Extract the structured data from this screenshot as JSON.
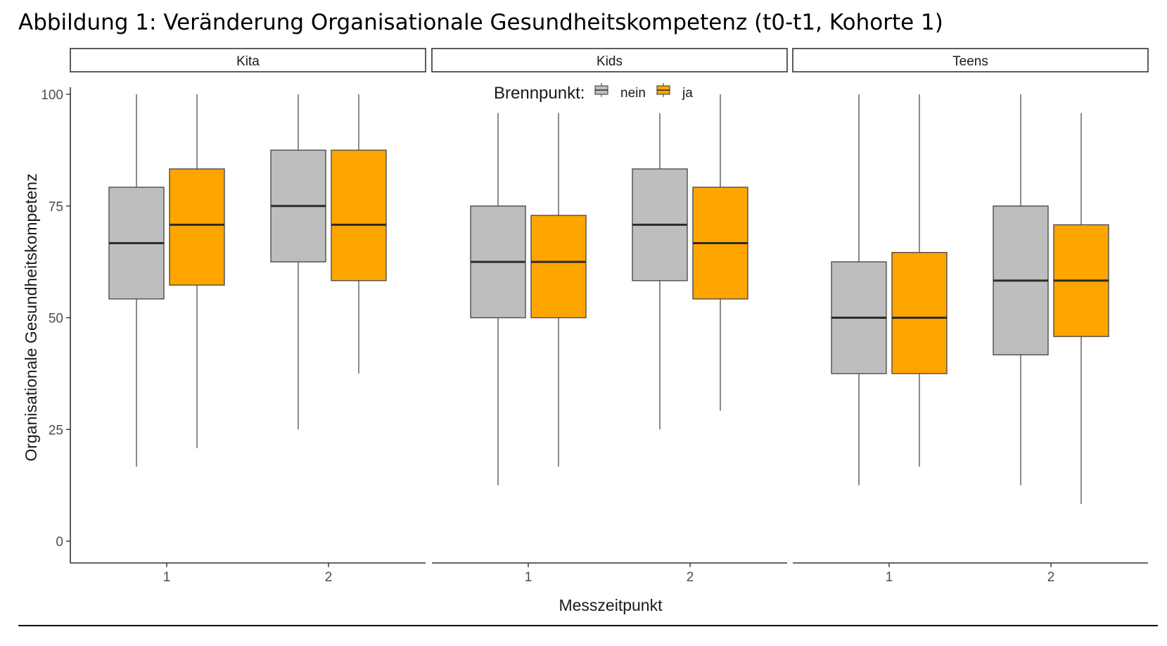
{
  "figure": {
    "title": "Abbildung 1: Veränderung Organisationale Gesundheitskompetenz (t0-t1, Kohorte 1)"
  },
  "chart_data": {
    "type": "boxplot",
    "facets": [
      "Kita",
      "Kids",
      "Teens"
    ],
    "xlabel": "Messzeitpunkt",
    "ylabel": "Organisationale Gesundheitskompetenz",
    "x_categories": [
      "1",
      "2"
    ],
    "ylim": [
      0,
      100
    ],
    "yticks": [
      0,
      25,
      50,
      75,
      100
    ],
    "grid": false,
    "legend": {
      "title": "Brennpunkt:",
      "position": "top",
      "entries": [
        {
          "key": "nein",
          "label": "nein",
          "color": "#bebebe"
        },
        {
          "key": "ja",
          "label": "ja",
          "color": "#ffa500"
        }
      ]
    },
    "boxes": [
      {
        "facet": "Kita",
        "x": "1",
        "group": "nein",
        "min": 16.7,
        "q1": 54.2,
        "median": 66.7,
        "q3": 79.2,
        "max": 100
      },
      {
        "facet": "Kita",
        "x": "1",
        "group": "ja",
        "min": 20.8,
        "q1": 57.3,
        "median": 70.8,
        "q3": 83.3,
        "max": 100
      },
      {
        "facet": "Kita",
        "x": "2",
        "group": "nein",
        "min": 25.0,
        "q1": 62.5,
        "median": 75.0,
        "q3": 87.5,
        "max": 100
      },
      {
        "facet": "Kita",
        "x": "2",
        "group": "ja",
        "min": 37.5,
        "q1": 58.3,
        "median": 70.8,
        "q3": 87.5,
        "max": 100
      },
      {
        "facet": "Kids",
        "x": "1",
        "group": "nein",
        "min": 12.5,
        "q1": 50.0,
        "median": 62.5,
        "q3": 75.0,
        "max": 95.8
      },
      {
        "facet": "Kids",
        "x": "1",
        "group": "ja",
        "min": 16.7,
        "q1": 50.0,
        "median": 62.5,
        "q3": 72.9,
        "max": 95.8
      },
      {
        "facet": "Kids",
        "x": "2",
        "group": "nein",
        "min": 25.0,
        "q1": 58.3,
        "median": 70.8,
        "q3": 83.3,
        "max": 95.8
      },
      {
        "facet": "Kids",
        "x": "2",
        "group": "ja",
        "min": 29.2,
        "q1": 54.2,
        "median": 66.7,
        "q3": 79.2,
        "max": 100
      },
      {
        "facet": "Teens",
        "x": "1",
        "group": "nein",
        "min": 12.5,
        "q1": 37.5,
        "median": 50.0,
        "q3": 62.5,
        "max": 100
      },
      {
        "facet": "Teens",
        "x": "1",
        "group": "ja",
        "min": 16.7,
        "q1": 37.5,
        "median": 50.0,
        "q3": 64.6,
        "max": 100
      },
      {
        "facet": "Teens",
        "x": "2",
        "group": "nein",
        "min": 12.5,
        "q1": 41.7,
        "median": 58.3,
        "q3": 75.0,
        "max": 100
      },
      {
        "facet": "Teens",
        "x": "2",
        "group": "ja",
        "min": 8.3,
        "q1": 45.8,
        "median": 58.3,
        "q3": 70.8,
        "max": 95.8
      }
    ]
  }
}
